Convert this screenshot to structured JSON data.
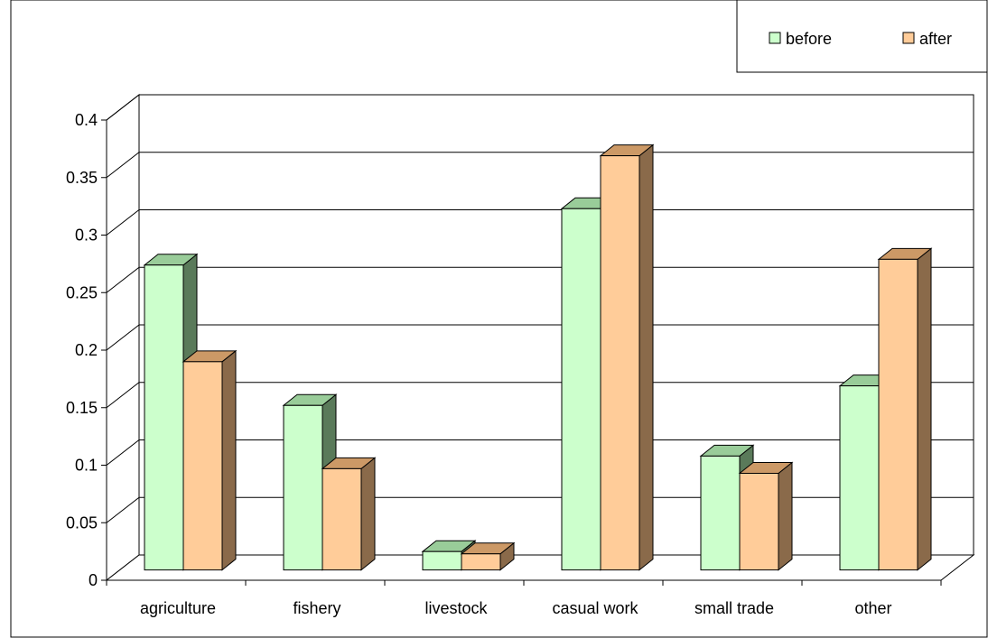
{
  "chart_data": {
    "type": "bar",
    "title": "",
    "xlabel": "",
    "ylabel": "",
    "categories": [
      "agriculture",
      "fishery",
      "livestock",
      "casual work",
      "small trade",
      "other"
    ],
    "series": [
      {
        "name": "before",
        "values": [
          0.265,
          0.143,
          0.016,
          0.314,
          0.099,
          0.16
        ],
        "color": "#ccffcc"
      },
      {
        "name": "after",
        "values": [
          0.181,
          0.088,
          0.014,
          0.36,
          0.084,
          0.27
        ],
        "color": "#ffcc99"
      }
    ],
    "ylim": [
      0,
      0.4
    ],
    "yticks": [
      "0",
      "0.05",
      "0.1",
      "0.15",
      "0.2",
      "0.25",
      "0.3",
      "0.35",
      "0.4"
    ],
    "grid": true,
    "legend_position": "top-right",
    "style": "3d-clustered-column"
  }
}
